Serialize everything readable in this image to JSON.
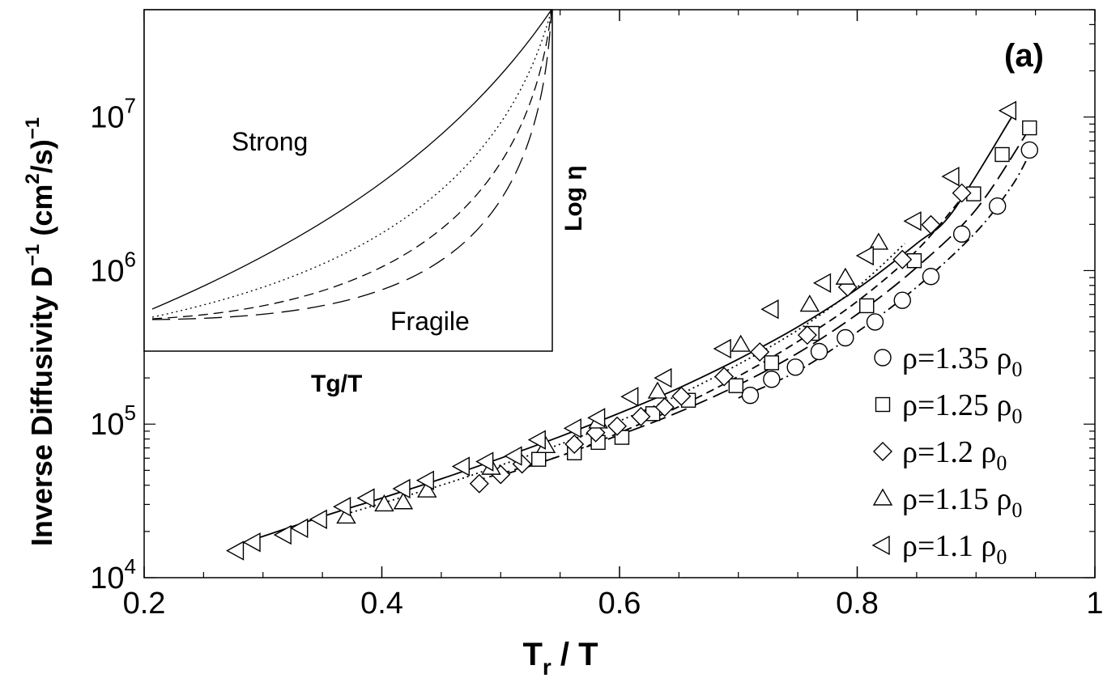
{
  "chart_data": {
    "type": "scatter",
    "panel_label": "(a)",
    "xlabel": "T / T",
    "xlabel_main": "T",
    "xlabel_sub": "r",
    "xlabel_rest": " / T",
    "ylabel": "Inverse Diffusivity D (cm /s)",
    "ylabel_main": "Inverse Diffusivity D",
    "ylabel_exp1": "−1",
    "ylabel_mid": " (cm",
    "ylabel_exp2": "2",
    "ylabel_end": "/s)",
    "ylabel_exp3": "−1",
    "xlim": [
      0.2,
      1.0
    ],
    "ylim": [
      10000,
      50000000
    ],
    "y_scale": "log",
    "x_ticks": [
      "0.2",
      "0.4",
      "0.6",
      "0.8",
      "1"
    ],
    "x_tick_values": [
      0.2,
      0.4,
      0.6,
      0.8,
      1.0
    ],
    "y_ticks": [
      {
        "base": "10",
        "exp": "4",
        "value": 10000
      },
      {
        "base": "10",
        "exp": "5",
        "value": 100000
      },
      {
        "base": "10",
        "exp": "6",
        "value": 1000000
      },
      {
        "base": "10",
        "exp": "7",
        "value": 10000000
      }
    ],
    "legend_position": "bottom-right",
    "series": [
      {
        "name": "ρ=1.35 ρ0",
        "label_main": "ρ=1.35 ρ",
        "label_sub": "0",
        "marker": "circle",
        "line_style": "dash-dot",
        "x": [
          0.71,
          0.728,
          0.748,
          0.768,
          0.79,
          0.815,
          0.838,
          0.862,
          0.888,
          0.918,
          0.945
        ],
        "y": [
          154000,
          196000,
          235000,
          297000,
          365000,
          463000,
          640000,
          915000,
          1730000,
          2630000,
          6100000
        ],
        "fit_x": [
          0.7,
          0.75,
          0.8,
          0.85,
          0.9,
          0.93,
          0.945
        ],
        "fit_y": [
          148000,
          222000,
          398000,
          780000,
          1780000,
          3550000,
          5750000
        ]
      },
      {
        "name": "ρ=1.25 ρ0",
        "label_main": "ρ=1.25 ρ",
        "label_sub": "0",
        "marker": "square",
        "line_style": "long-dash",
        "x": [
          0.532,
          0.562,
          0.582,
          0.602,
          0.628,
          0.658,
          0.698,
          0.728,
          0.762,
          0.808,
          0.848,
          0.898,
          0.922,
          0.945
        ],
        "y": [
          59000,
          65000,
          76000,
          82000,
          117000,
          143000,
          178000,
          251000,
          390000,
          590000,
          1160000,
          3160000,
          5700000,
          8500000
        ],
        "fit_x": [
          0.5,
          0.55,
          0.6,
          0.65,
          0.7,
          0.75,
          0.8,
          0.85,
          0.9,
          0.945
        ],
        "fit_y": [
          46000,
          62000,
          85000,
          120000,
          180000,
          290000,
          520000,
          1050000,
          2500000,
          8400000
        ]
      },
      {
        "name": "ρ=1.2 ρ0",
        "label_main": "ρ=1.2 ρ",
        "label_sub": "0",
        "marker": "diamond",
        "line_style": "short-dash",
        "x": [
          0.482,
          0.5,
          0.518,
          0.562,
          0.58,
          0.598,
          0.618,
          0.638,
          0.652,
          0.688,
          0.718,
          0.758,
          0.792,
          0.838,
          0.862,
          0.888
        ],
        "y": [
          41000,
          47000,
          55000,
          74000,
          88000,
          97000,
          112000,
          129000,
          152000,
          204000,
          295000,
          380000,
          780000,
          1180000,
          1990000,
          3200000
        ],
        "fit_x": [
          0.48,
          0.55,
          0.6,
          0.65,
          0.7,
          0.75,
          0.8,
          0.85,
          0.89
        ],
        "fit_y": [
          43000,
          62000,
          88000,
          130000,
          205000,
          345000,
          630000,
          1350000,
          3100000
        ]
      },
      {
        "name": "ρ=1.15 ρ0",
        "label_main": "ρ=1.15 ρ",
        "label_sub": "0",
        "marker": "triangle-up",
        "line_style": "dotted",
        "x": [
          0.37,
          0.402,
          0.418,
          0.438,
          0.492,
          0.538,
          0.582,
          0.632,
          0.702,
          0.76,
          0.79,
          0.818
        ],
        "y": [
          25000,
          30000,
          31000,
          37000,
          52000,
          72000,
          104000,
          163000,
          329000,
          600000,
          900000,
          1520000
        ],
        "fit_x": [
          0.37,
          0.45,
          0.5,
          0.55,
          0.6,
          0.65,
          0.7,
          0.75,
          0.8,
          0.84
        ],
        "fit_y": [
          26000,
          40000,
          54000,
          74000,
          105000,
          155000,
          245000,
          410000,
          780000,
          1500000
        ]
      },
      {
        "name": "ρ=1.1 ρ0",
        "label_main": "ρ=1.1 ρ",
        "label_sub": "0",
        "marker": "triangle-left",
        "line_style": "solid",
        "x": [
          0.278,
          0.292,
          0.318,
          0.332,
          0.348,
          0.368,
          0.388,
          0.418,
          0.438,
          0.468,
          0.488,
          0.512,
          0.532,
          0.562,
          0.582,
          0.61,
          0.638,
          0.688,
          0.728,
          0.772,
          0.808,
          0.848,
          0.88,
          0.928
        ],
        "y": [
          15000,
          17000,
          19000,
          21000,
          24000,
          29000,
          33000,
          38000,
          43000,
          53000,
          57000,
          62000,
          79000,
          94000,
          110000,
          151000,
          200000,
          310000,
          560000,
          830000,
          1250000,
          2100000,
          4100000,
          11000000
        ],
        "fit_x": [
          0.28,
          0.35,
          0.4,
          0.45,
          0.5,
          0.55,
          0.6,
          0.65,
          0.7,
          0.75,
          0.8,
          0.85,
          0.88,
          0.93
        ],
        "fit_y": [
          16500,
          25000,
          33000,
          44000,
          60000,
          83000,
          118000,
          172000,
          265000,
          430000,
          760000,
          1500000,
          2400000,
          10000000
        ]
      }
    ],
    "inset": {
      "xlabel": "Tg/T",
      "ylabel": "Log η",
      "strong_label": "Strong",
      "fragile_label": "Fragile",
      "curve_styles": [
        "solid",
        "dotted",
        "short-dash",
        "long-dash"
      ]
    }
  },
  "colors": {
    "ink": "#000000",
    "background": "#ffffff"
  }
}
